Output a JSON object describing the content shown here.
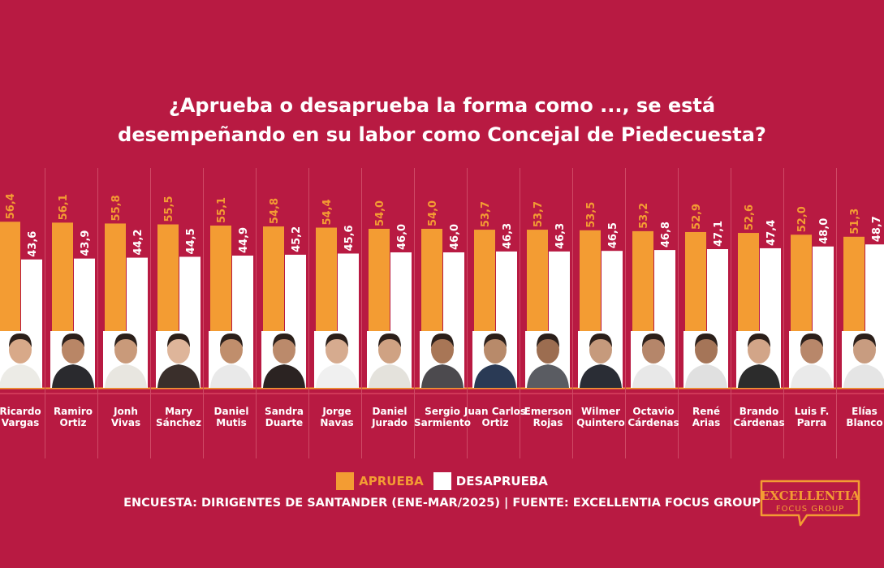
{
  "chart_data": {
    "type": "bar",
    "title": [
      "¿Aprueba o desaprueba la forma como ..., se está",
      "desempeñando en su labor como Concejal de Piedecuesta?"
    ],
    "categories": [
      [
        "Ricardo",
        "Vargas"
      ],
      [
        "Ramiro",
        "Ortiz"
      ],
      [
        "Jonh",
        "Vivas"
      ],
      [
        "Mary",
        "Sánchez"
      ],
      [
        "Daniel",
        "Mutis"
      ],
      [
        "Sandra",
        "Duarte"
      ],
      [
        "Jorge",
        "Navas"
      ],
      [
        "Daniel",
        "Jurado"
      ],
      [
        "Sergio",
        "Sarmiento"
      ],
      [
        "Juan Carlos",
        "Ortiz"
      ],
      [
        "Emerson",
        "Rojas"
      ],
      [
        "Wilmer",
        "Quintero"
      ],
      [
        "Octavio",
        "Cárdenas"
      ],
      [
        "René",
        "Arias"
      ],
      [
        "Brando",
        "Cárdenas"
      ],
      [
        "Luis F.",
        "Parra"
      ],
      [
        "Elías",
        "Blanco"
      ]
    ],
    "series": [
      {
        "name": "APRUEBA",
        "color": "#f39c33",
        "values": [
          56.4,
          56.1,
          55.8,
          55.5,
          55.1,
          54.8,
          54.4,
          54.0,
          54.0,
          53.7,
          53.7,
          53.5,
          53.2,
          52.9,
          52.6,
          52.0,
          51.3
        ],
        "labels": [
          "56,4",
          "56,1",
          "55,8",
          "55,5",
          "55,1",
          "54,8",
          "54,4",
          "54,0",
          "54,0",
          "53,7",
          "53,7",
          "53,5",
          "53,2",
          "52,9",
          "52,6",
          "52,0",
          "51,3"
        ]
      },
      {
        "name": "DESAPRUEBA",
        "color": "#ffffff",
        "values": [
          43.6,
          43.9,
          44.2,
          44.5,
          44.9,
          45.2,
          45.6,
          46.0,
          46.0,
          46.3,
          46.3,
          46.5,
          46.8,
          47.1,
          47.4,
          48.0,
          48.7
        ],
        "labels": [
          "43,6",
          "43,9",
          "44,2",
          "44,5",
          "44,9",
          "45,2",
          "45,6",
          "46,0",
          "46,0",
          "46,3",
          "46,3",
          "46,5",
          "46,8",
          "47,1",
          "47,4",
          "48,0",
          "48,7"
        ]
      }
    ],
    "legend": "bottom-center",
    "grid": false
  },
  "footer": "ENCUESTA: DIRIGENTES DE SANTANDER (ENE-MAR/2025) | FUENTE: EXCELLENTIA FOCUS GROUP",
  "logo": {
    "line1": "EXCELLENTIA",
    "line2": "FOCUS GROUP"
  },
  "colors": {
    "background": "#b81a42",
    "accent": "#f39c33"
  }
}
